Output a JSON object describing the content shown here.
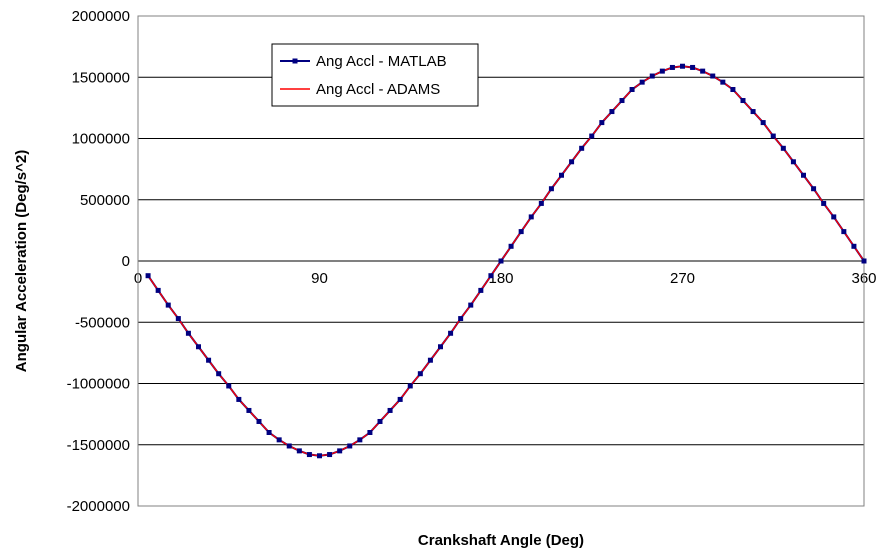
{
  "chart_data": {
    "type": "line",
    "title": "",
    "xlabel": "Crankshaft Angle (Deg)",
    "ylabel": "Angular Acceleration (Deg/s^2)",
    "xlim": [
      0,
      360
    ],
    "ylim": [
      -2000000,
      2000000
    ],
    "xticks": [
      0,
      90,
      180,
      270,
      360
    ],
    "xtick_labels": [
      "0",
      "90",
      "180",
      "270",
      "360"
    ],
    "yticks": [
      2000000,
      1500000,
      1000000,
      500000,
      0,
      -500000,
      -1000000,
      -1500000,
      -2000000
    ],
    "ytick_labels": [
      "2000000",
      "1500000",
      "1000000",
      "500000",
      "0",
      "-500000",
      "-1000000",
      "-1500000",
      "-2000000"
    ],
    "grid": "horizontal",
    "legend_position": "top-left",
    "colors": {
      "matlab": "#000080",
      "adams": "#ff0000"
    },
    "series": [
      {
        "name": "Ang Accl - MATLAB",
        "x": [
          5,
          10,
          15,
          20,
          25,
          30,
          35,
          40,
          45,
          50,
          55,
          60,
          65,
          70,
          75,
          80,
          85,
          90,
          95,
          100,
          105,
          110,
          115,
          120,
          125,
          130,
          135,
          140,
          145,
          150,
          155,
          160,
          165,
          170,
          175,
          180,
          185,
          190,
          195,
          200,
          205,
          210,
          215,
          220,
          225,
          230,
          235,
          240,
          245,
          250,
          255,
          260,
          265,
          270,
          275,
          280,
          285,
          290,
          295,
          300,
          305,
          310,
          315,
          320,
          325,
          330,
          335,
          340,
          345,
          350,
          355,
          360
        ],
        "y": [
          -120000,
          -240000,
          -360000,
          -470000,
          -590000,
          -700000,
          -810000,
          -920000,
          -1020000,
          -1130000,
          -1220000,
          -1310000,
          -1400000,
          -1460000,
          -1510000,
          -1550000,
          -1580000,
          -1590000,
          -1580000,
          -1550000,
          -1510000,
          -1460000,
          -1400000,
          -1310000,
          -1220000,
          -1130000,
          -1020000,
          -920000,
          -810000,
          -700000,
          -590000,
          -470000,
          -360000,
          -240000,
          -120000,
          0,
          120000,
          240000,
          360000,
          470000,
          590000,
          700000,
          810000,
          920000,
          1020000,
          1130000,
          1220000,
          1310000,
          1400000,
          1460000,
          1510000,
          1550000,
          1580000,
          1590000,
          1580000,
          1550000,
          1510000,
          1460000,
          1400000,
          1310000,
          1220000,
          1130000,
          1020000,
          920000,
          810000,
          700000,
          590000,
          470000,
          360000,
          240000,
          120000,
          0
        ],
        "marker": "square"
      },
      {
        "name": "Ang Accl - ADAMS",
        "x": [
          5,
          10,
          15,
          20,
          25,
          30,
          35,
          40,
          45,
          50,
          55,
          60,
          65,
          70,
          75,
          80,
          85,
          90,
          95,
          100,
          105,
          110,
          115,
          120,
          125,
          130,
          135,
          140,
          145,
          150,
          155,
          160,
          165,
          170,
          175,
          180,
          185,
          190,
          195,
          200,
          205,
          210,
          215,
          220,
          225,
          230,
          235,
          240,
          245,
          250,
          255,
          260,
          265,
          270,
          275,
          280,
          285,
          290,
          295,
          300,
          305,
          310,
          315,
          320,
          325,
          330,
          335,
          340,
          345,
          350,
          355,
          360
        ],
        "y": [
          -120000,
          -240000,
          -360000,
          -470000,
          -590000,
          -700000,
          -810000,
          -920000,
          -1020000,
          -1130000,
          -1220000,
          -1310000,
          -1400000,
          -1460000,
          -1510000,
          -1550000,
          -1580000,
          -1590000,
          -1580000,
          -1550000,
          -1510000,
          -1460000,
          -1400000,
          -1310000,
          -1220000,
          -1130000,
          -1020000,
          -920000,
          -810000,
          -700000,
          -590000,
          -470000,
          -360000,
          -240000,
          -120000,
          0,
          120000,
          240000,
          360000,
          470000,
          590000,
          700000,
          810000,
          920000,
          1020000,
          1130000,
          1220000,
          1310000,
          1400000,
          1460000,
          1510000,
          1550000,
          1580000,
          1590000,
          1580000,
          1550000,
          1510000,
          1460000,
          1400000,
          1310000,
          1220000,
          1130000,
          1020000,
          920000,
          810000,
          700000,
          590000,
          470000,
          360000,
          240000,
          120000,
          0
        ],
        "marker": "none"
      }
    ]
  }
}
